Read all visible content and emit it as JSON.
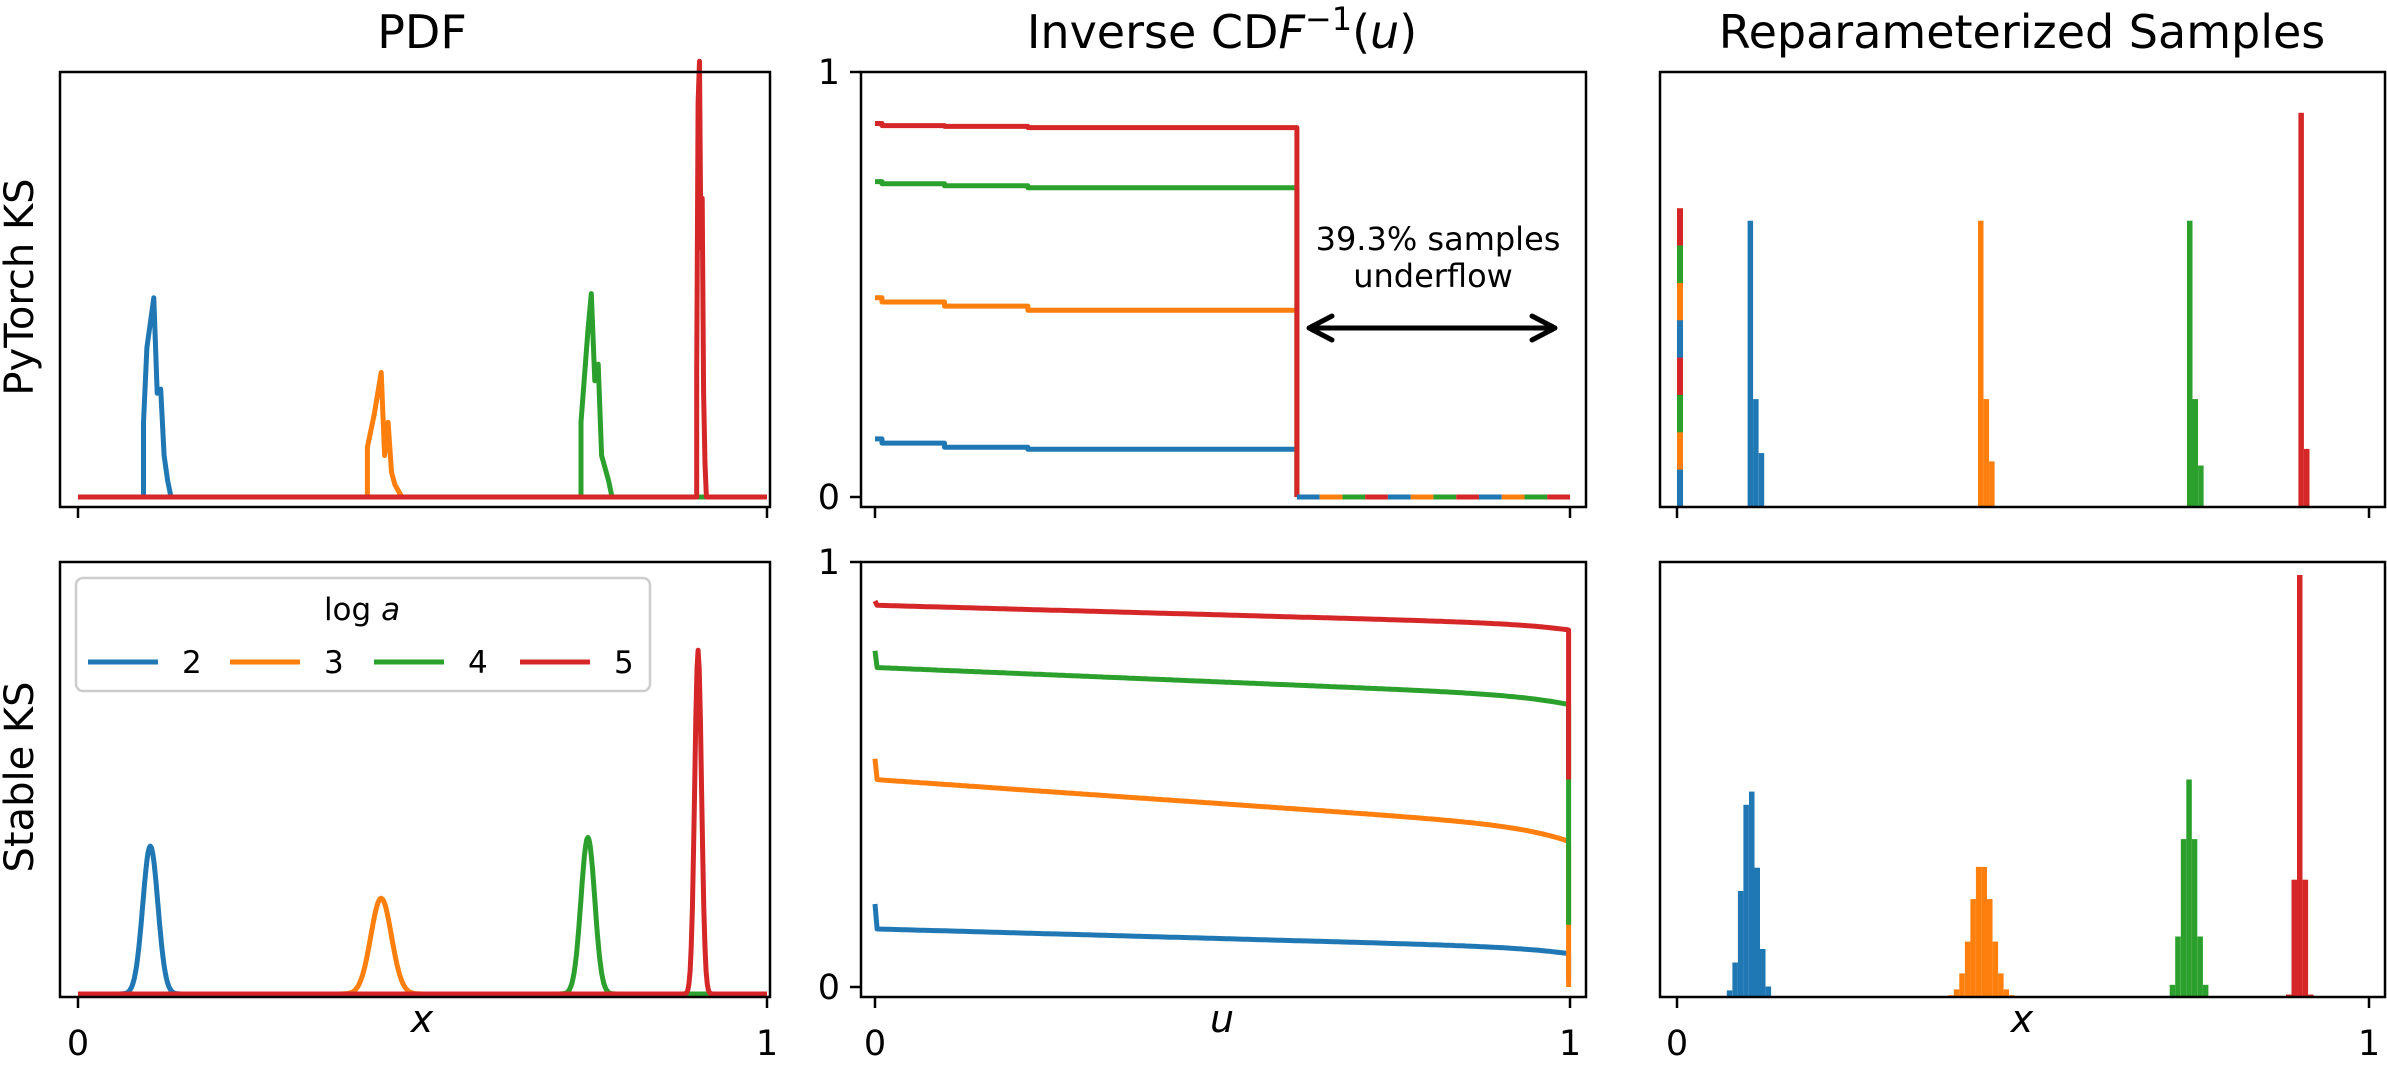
{
  "column_titles": [
    "PDF",
    "Inverse CDF F⁻¹(u)",
    "Reparameterized Samples"
  ],
  "row_labels": [
    "PyTorch KS",
    "Stable KS"
  ],
  "ticks": {
    "zero": "0",
    "one": "1"
  },
  "axis_labels": {
    "x": "x",
    "u": "u"
  },
  "annotation": [
    "39.3% samples",
    "underflow"
  ],
  "legend": {
    "title": "log a",
    "entries": [
      "2",
      "3",
      "4",
      "5"
    ]
  },
  "colors": {
    "2": "#1f77b4",
    "3": "#ff7f0e",
    "4": "#2ca02c",
    "5": "#d62728"
  },
  "chart_data": [
    {
      "panel": "PyTorch KS / PDF",
      "type": "line",
      "xlabel": "",
      "xlim": [
        0,
        1
      ],
      "series": [
        {
          "name": "2",
          "x": [
            0.095,
            0.1,
            0.11,
            0.115,
            0.12,
            0.125,
            0.13,
            0.135
          ],
          "y": [
            0.18,
            0.36,
            0.48,
            0.25,
            0.26,
            0.1,
            0.04,
            0.0
          ]
        },
        {
          "name": "3",
          "x": [
            0.42,
            0.43,
            0.44,
            0.445,
            0.45,
            0.455,
            0.46,
            0.47
          ],
          "y": [
            0.12,
            0.2,
            0.3,
            0.1,
            0.18,
            0.06,
            0.03,
            0.0
          ]
        },
        {
          "name": "4",
          "x": [
            0.73,
            0.74,
            0.745,
            0.75,
            0.755,
            0.76,
            0.77,
            0.775
          ],
          "y": [
            0.18,
            0.4,
            0.49,
            0.28,
            0.32,
            0.1,
            0.04,
            0.0
          ]
        },
        {
          "name": "5",
          "x": [
            0.898,
            0.9,
            0.902,
            0.904,
            0.906,
            0.908,
            0.91,
            0.912
          ],
          "y": [
            0.3,
            0.95,
            1.05,
            0.6,
            0.72,
            0.25,
            0.08,
            0.0
          ]
        }
      ]
    },
    {
      "panel": "PyTorch KS / Inverse CDF",
      "type": "line",
      "xlim": [
        0,
        1
      ],
      "ylim": [
        0,
        1
      ],
      "underflow_at_u": 0.607,
      "series": [
        {
          "name": "2",
          "u": [
            0,
            0.01,
            0.1,
            0.22,
            0.607
          ],
          "y": [
            0.14,
            0.13,
            0.12,
            0.115,
            0.11
          ]
        },
        {
          "name": "3",
          "u": [
            0,
            0.01,
            0.1,
            0.22,
            0.607
          ],
          "y": [
            0.48,
            0.47,
            0.46,
            0.45,
            0.445
          ]
        },
        {
          "name": "4",
          "u": [
            0,
            0.01,
            0.1,
            0.22,
            0.607
          ],
          "y": [
            0.76,
            0.755,
            0.75,
            0.745,
            0.74
          ]
        },
        {
          "name": "5",
          "u": [
            0,
            0.01,
            0.1,
            0.22,
            0.607
          ],
          "y": [
            0.9,
            0.895,
            0.893,
            0.89,
            0.888
          ]
        }
      ]
    },
    {
      "panel": "PyTorch KS / Reparameterized Samples",
      "type": "bar",
      "xlim": [
        0,
        1
      ],
      "series": [
        {
          "name": "2",
          "bins": [
            0.102,
            0.11,
            0.118
          ],
          "values": [
            0.69,
            0.26,
            0.13
          ]
        },
        {
          "name": "3",
          "bins": [
            0.435,
            0.443,
            0.451
          ],
          "values": [
            0.69,
            0.26,
            0.11
          ]
        },
        {
          "name": "4",
          "bins": [
            0.737,
            0.745,
            0.753
          ],
          "values": [
            0.69,
            0.26,
            0.1
          ]
        },
        {
          "name": "5",
          "bins": [
            0.898,
            0.906
          ],
          "values": [
            0.95,
            0.14
          ]
        },
        {
          "name": "underflow at 0",
          "bins": [
            0.0
          ],
          "values": [
            0.72
          ]
        }
      ]
    },
    {
      "panel": "Stable KS / PDF",
      "type": "line",
      "xlim": [
        0,
        1
      ],
      "series": [
        {
          "name": "2",
          "mean": 0.105,
          "sd": 0.011,
          "peak": 0.34
        },
        {
          "name": "3",
          "mean": 0.44,
          "sd": 0.015,
          "peak": 0.22
        },
        {
          "name": "4",
          "mean": 0.74,
          "sd": 0.01,
          "peak": 0.36
        },
        {
          "name": "5",
          "mean": 0.9,
          "sd": 0.005,
          "peak": 0.79
        }
      ]
    },
    {
      "panel": "Stable KS / Inverse CDF",
      "type": "line",
      "xlabel": "u",
      "xlim": [
        0,
        1
      ],
      "ylim": [
        0,
        1
      ],
      "series": [
        {
          "name": "2",
          "u0": 0.2,
          "start": 0.14,
          "end": 0.08,
          "drop": 0.02
        },
        {
          "name": "3",
          "u0": 0.55,
          "start": 0.5,
          "end": 0.35,
          "drop": 0.0
        },
        {
          "name": "4",
          "u0": 0.81,
          "start": 0.77,
          "end": 0.68,
          "drop": 0.15
        },
        {
          "name": "5",
          "u0": 0.93,
          "start": 0.92,
          "end": 0.86,
          "drop": 0.5
        }
      ]
    },
    {
      "panel": "Stable KS / Reparameterized Samples",
      "type": "bar",
      "xlabel": "x",
      "xlim": [
        0,
        1
      ],
      "series": [
        {
          "name": "2",
          "mean": 0.105,
          "sd": 0.011,
          "peak": 0.49
        },
        {
          "name": "3",
          "mean": 0.44,
          "sd": 0.015,
          "peak": 0.31
        },
        {
          "name": "4",
          "mean": 0.74,
          "sd": 0.01,
          "peak": 0.5
        },
        {
          "name": "5",
          "mean": 0.9,
          "sd": 0.005,
          "peak": 0.97
        }
      ]
    }
  ]
}
